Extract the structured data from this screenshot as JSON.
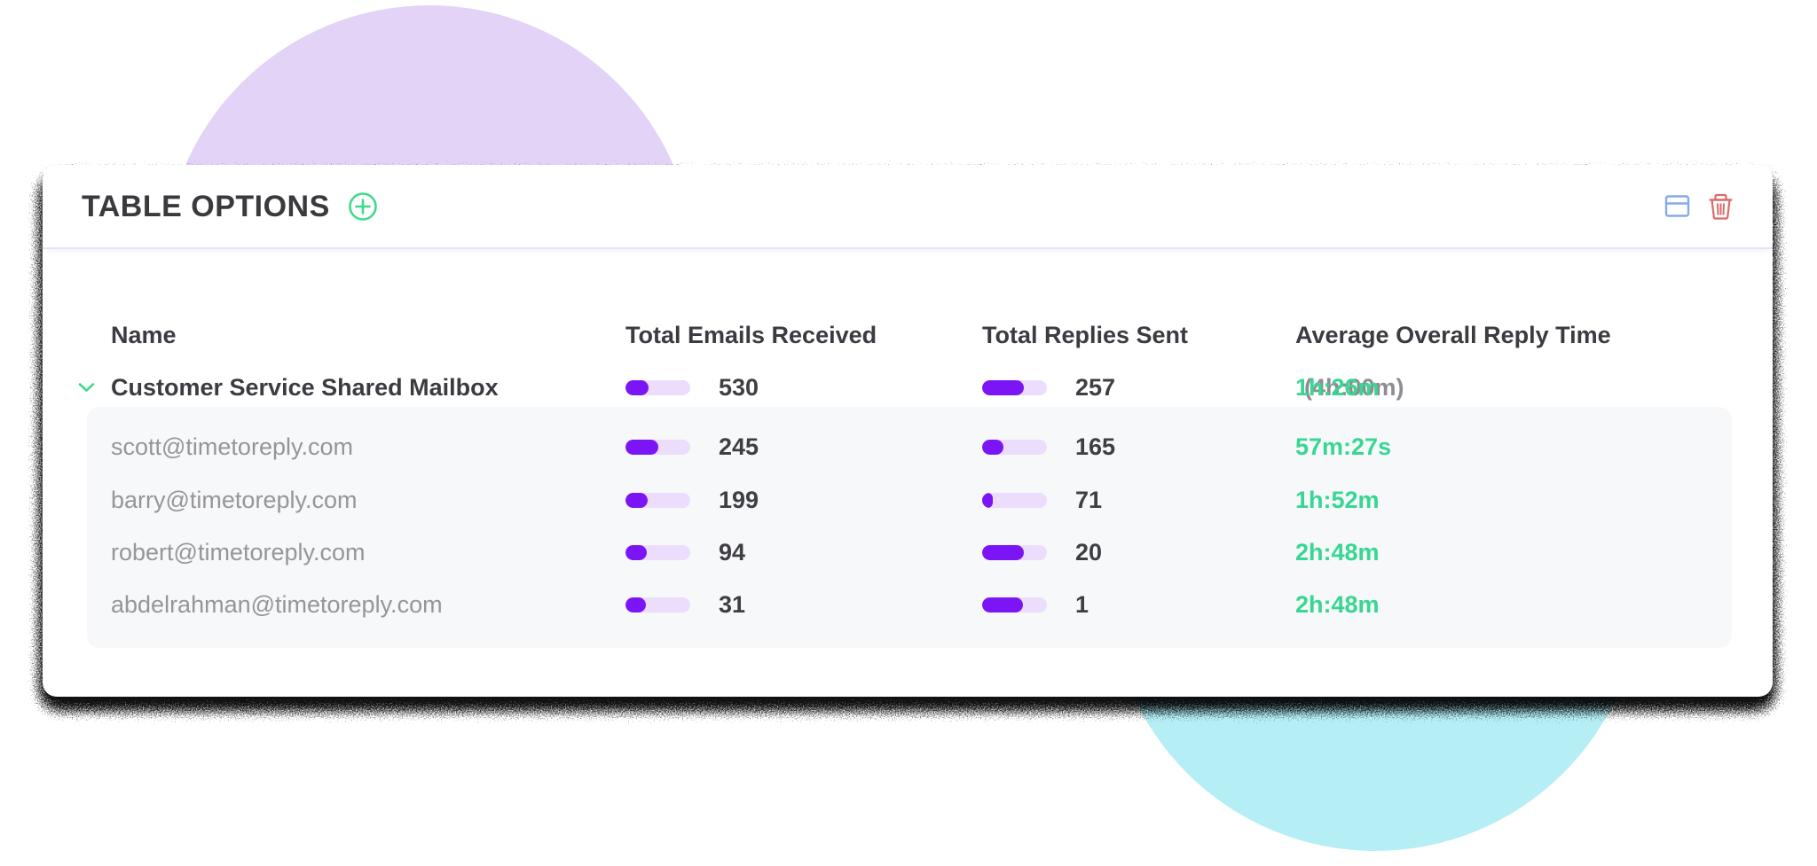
{
  "header": {
    "title": "TABLE OPTIONS",
    "add_icon": "plus-circle-icon",
    "view_icon": "table-view-icon",
    "delete_icon": "trash-icon"
  },
  "colors": {
    "accent_green": "#41D98C",
    "bar_fill": "#7C15F6",
    "bar_track": "#EBDDFB",
    "time_green": "#38D693",
    "secondary_gray": "#8D8D92",
    "circle_purple": "#E3D3F7",
    "circle_teal": "#B5EEF5",
    "icon_blue": "#85A9EC",
    "icon_red": "#D96B6B"
  },
  "table": {
    "columns": [
      "Name",
      "Total Emails Received",
      "Total Replies Sent",
      "Average Overall Reply Time"
    ],
    "rows": [
      {
        "name": "Customer Service Shared Mailbox",
        "type": "group",
        "expanded": true,
        "emails": "530",
        "emails_pct": 35,
        "replies": "257",
        "replies_pct": 64,
        "time": "1h:26m",
        "time_secondary": "(4h:00m)"
      },
      {
        "name": "scott@timetoreply.com",
        "type": "member",
        "emails": "245",
        "emails_pct": 50,
        "replies": "165",
        "replies_pct": 33,
        "time": "57m:27s",
        "time_secondary": ""
      },
      {
        "name": "barry@timetoreply.com",
        "type": "member",
        "emails": "199",
        "emails_pct": 34,
        "replies": "71",
        "replies_pct": 17,
        "time": "1h:52m",
        "time_secondary": ""
      },
      {
        "name": "robert@timetoreply.com",
        "type": "member",
        "emails": "94",
        "emails_pct": 33,
        "replies": "20",
        "replies_pct": 64,
        "time": "2h:48m",
        "time_secondary": ""
      },
      {
        "name": "abdelrahman@timetoreply.com",
        "type": "member",
        "emails": "31",
        "emails_pct": 32,
        "replies": "1",
        "replies_pct": 63,
        "time": "2h:48m",
        "time_secondary": ""
      }
    ]
  }
}
